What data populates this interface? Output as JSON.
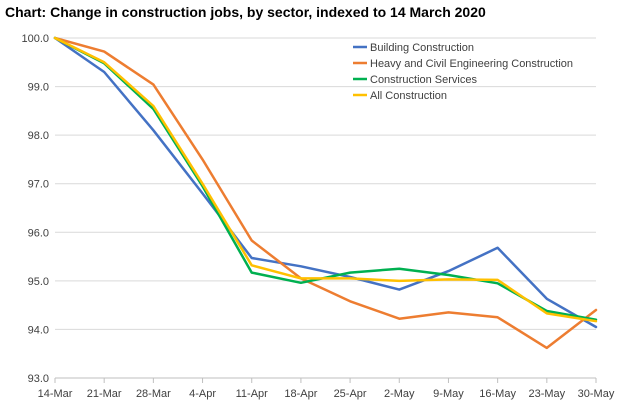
{
  "chart_data": {
    "type": "line",
    "title": "Chart: Change in construction jobs, by sector, indexed to 14 March 2020",
    "xlabel": "",
    "ylabel": "",
    "categories": [
      "14-Mar",
      "21-Mar",
      "28-Mar",
      "4-Apr",
      "11-Apr",
      "18-Apr",
      "25-Apr",
      "2-May",
      "9-May",
      "16-May",
      "23-May",
      "30-May"
    ],
    "ylim": [
      93.0,
      100.0
    ],
    "yticks": [
      "93.0",
      "94.0",
      "95.0",
      "96.0",
      "97.0",
      "98.0",
      "99.0",
      "100.0"
    ],
    "grid": true,
    "legend_position": "top-right",
    "series": [
      {
        "name": "Building Construction",
        "color": "#4472C4",
        "values": [
          100.0,
          99.3,
          98.1,
          96.8,
          95.47,
          95.3,
          95.08,
          94.82,
          95.2,
          95.68,
          94.63,
          94.05
        ]
      },
      {
        "name": "Heavy and Civil Engineering Construction",
        "color": "#ED7D31",
        "values": [
          100.0,
          99.72,
          99.04,
          97.5,
          95.83,
          95.05,
          94.58,
          94.22,
          94.35,
          94.25,
          93.62,
          94.4
        ]
      },
      {
        "name": "Construction Services",
        "color": "#00B050",
        "values": [
          100.0,
          99.48,
          98.54,
          96.95,
          95.17,
          94.96,
          95.17,
          95.25,
          95.12,
          94.95,
          94.38,
          94.2
        ]
      },
      {
        "name": "All Construction",
        "color": "#FFC000",
        "values": [
          100.0,
          99.5,
          98.6,
          97.0,
          95.32,
          95.05,
          95.05,
          95.0,
          95.03,
          95.02,
          94.33,
          94.17
        ]
      }
    ]
  }
}
